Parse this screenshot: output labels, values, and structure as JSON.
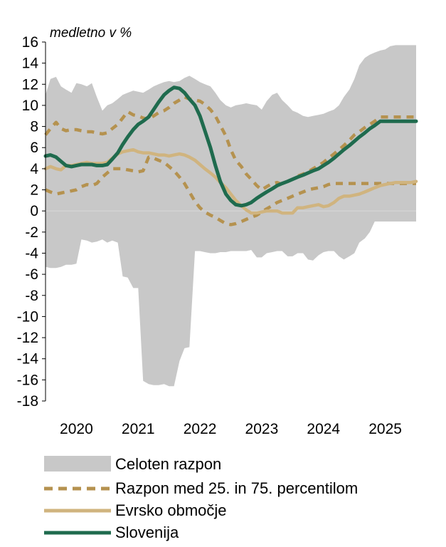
{
  "chart_data": {
    "type": "area",
    "ylabel": "medletno v %",
    "ylim": [
      -18,
      16
    ],
    "y_ticks": [
      "16",
      "14",
      "12",
      "10",
      "8",
      "6",
      "4",
      "2",
      "0",
      "-2",
      "-4",
      "-6",
      "-8",
      "-10",
      "-12",
      "-14",
      "-16",
      "-18"
    ],
    "x_labels": [
      "2020",
      "2021",
      "2022",
      "2023",
      "2024",
      "2025"
    ],
    "legend_position": "bottom",
    "colors": {
      "range": "#c8c8c8",
      "percentile": "#b5924f",
      "euro": "#d0b47f",
      "slovenia": "#1f6b4e"
    },
    "x_start": 2019.5,
    "x_end": 2025.5,
    "range_band": {
      "name": "Celoten razpon",
      "x": [
        2019.5,
        2019.58,
        2019.67,
        2019.75,
        2019.83,
        2019.92,
        2020.0,
        2020.08,
        2020.17,
        2020.25,
        2020.33,
        2020.42,
        2020.5,
        2020.58,
        2020.67,
        2020.75,
        2020.83,
        2020.92,
        2021.0,
        2021.08,
        2021.17,
        2021.25,
        2021.33,
        2021.42,
        2021.5,
        2021.58,
        2021.67,
        2021.75,
        2021.83,
        2021.92,
        2022.0,
        2022.08,
        2022.17,
        2022.25,
        2022.33,
        2022.42,
        2022.5,
        2022.58,
        2022.67,
        2022.75,
        2022.83,
        2022.92,
        2023.0,
        2023.08,
        2023.17,
        2023.25,
        2023.33,
        2023.42,
        2023.5,
        2023.58,
        2023.67,
        2023.75,
        2023.83,
        2023.92,
        2024.0,
        2024.08,
        2024.17,
        2024.25,
        2024.33,
        2024.42,
        2024.5,
        2024.58,
        2024.67,
        2024.75,
        2024.83,
        2024.92,
        2025.0,
        2025.08,
        2025.17,
        2025.25,
        2025.33,
        2025.42,
        2025.5
      ],
      "high": [
        11.0,
        12.5,
        12.7,
        11.8,
        11.5,
        11.2,
        12.1,
        12.0,
        11.8,
        12.1,
        10.8,
        9.5,
        10.0,
        10.2,
        10.6,
        11.0,
        11.2,
        11.4,
        11.3,
        11.2,
        11.5,
        11.8,
        12.0,
        12.2,
        12.3,
        12.2,
        12.3,
        12.6,
        12.8,
        12.5,
        12.2,
        12.0,
        11.8,
        11.2,
        10.5,
        10.0,
        9.8,
        10.0,
        10.1,
        10.2,
        10.1,
        10.0,
        9.6,
        10.4,
        11.0,
        11.2,
        10.5,
        10.0,
        9.5,
        9.3,
        9.0,
        8.9,
        9.0,
        9.1,
        9.2,
        9.4,
        9.6,
        10.0,
        10.8,
        11.5,
        12.5,
        13.8,
        14.5,
        14.8,
        15.0,
        15.2,
        15.3,
        15.6,
        15.7,
        15.7,
        15.7,
        15.7,
        15.7
      ],
      "low": [
        -5.3,
        -5.4,
        -5.4,
        -5.3,
        -5.1,
        -5.1,
        -5.0,
        -2.7,
        -2.8,
        -3.0,
        -2.9,
        -2.7,
        -3.0,
        -2.8,
        -3.0,
        -6.2,
        -6.3,
        -7.3,
        -7.3,
        -16.1,
        -16.4,
        -16.5,
        -16.5,
        -16.4,
        -16.6,
        -16.6,
        -14.2,
        -13.0,
        -12.9,
        -3.8,
        -3.8,
        -3.9,
        -4.0,
        -4.0,
        -3.9,
        -3.9,
        -3.8,
        -3.8,
        -3.8,
        -3.8,
        -3.7,
        -4.4,
        -4.4,
        -4.0,
        -3.9,
        -3.8,
        -3.8,
        -4.3,
        -4.3,
        -4.0,
        -4.0,
        -4.6,
        -4.7,
        -4.2,
        -3.9,
        -3.8,
        -3.8,
        -4.3,
        -4.6,
        -4.3,
        -4.0,
        -3.0,
        -2.6,
        -2.0,
        -1.0,
        -1.0,
        -1.0,
        -1.0,
        -1.0,
        -1.0,
        -1.0,
        -1.0,
        -1.0
      ]
    },
    "series": [
      {
        "name": "Razpon med 25. in 75. percentilom",
        "style": "dashed",
        "x": [
          2019.5,
          2019.58,
          2019.67,
          2019.75,
          2019.83,
          2019.92,
          2020.0,
          2020.08,
          2020.17,
          2020.25,
          2020.33,
          2020.42,
          2020.5,
          2020.58,
          2020.67,
          2020.75,
          2020.83,
          2020.92,
          2021.0,
          2021.08,
          2021.17,
          2021.25,
          2021.33,
          2021.42,
          2021.5,
          2021.58,
          2021.67,
          2021.75,
          2021.83,
          2021.92,
          2022.0,
          2022.08,
          2022.17,
          2022.25,
          2022.33,
          2022.42,
          2022.5,
          2022.58,
          2022.67,
          2022.75,
          2022.83,
          2022.92,
          2023.0,
          2023.08,
          2023.17,
          2023.25,
          2023.33,
          2023.42,
          2023.5,
          2023.58,
          2023.67,
          2023.75,
          2023.83,
          2023.92,
          2024.0,
          2024.08,
          2024.17,
          2024.25,
          2024.33,
          2024.42,
          2024.5,
          2024.58,
          2024.67,
          2024.75,
          2024.83,
          2024.92,
          2025.0,
          2025.08,
          2025.17,
          2025.25,
          2025.33,
          2025.42,
          2025.5
        ],
        "values": [
          7.2,
          7.8,
          8.4,
          7.8,
          7.6,
          7.7,
          7.7,
          7.6,
          7.5,
          7.5,
          7.4,
          7.3,
          7.4,
          7.8,
          8.2,
          8.8,
          9.4,
          9.1,
          9.0,
          8.8,
          8.7,
          9.0,
          9.3,
          9.5,
          9.8,
          10.2,
          10.5,
          10.8,
          10.6,
          10.5,
          10.4,
          10.1,
          9.6,
          9.0,
          8.1,
          7.1,
          5.8,
          4.8,
          4.2,
          3.5,
          3.0,
          2.4,
          2.0,
          2.3,
          2.6,
          2.7,
          2.5,
          2.8,
          3.0,
          3.3,
          3.5,
          3.7,
          4.0,
          4.3,
          4.6,
          5.0,
          5.4,
          5.8,
          6.2,
          6.7,
          7.2,
          7.5,
          7.9,
          8.2,
          8.5,
          8.9,
          8.9,
          8.9,
          8.9,
          8.9,
          8.9,
          8.9,
          8.9
        ]
      },
      {
        "name": "Razpon med 25. in 75. percentilom",
        "style": "dashed",
        "show_in_legend": false,
        "x": [
          2019.5,
          2019.58,
          2019.67,
          2019.75,
          2019.83,
          2019.92,
          2020.0,
          2020.08,
          2020.17,
          2020.25,
          2020.33,
          2020.42,
          2020.5,
          2020.58,
          2020.67,
          2020.75,
          2020.83,
          2020.92,
          2021.0,
          2021.08,
          2021.17,
          2021.25,
          2021.33,
          2021.42,
          2021.5,
          2021.58,
          2021.67,
          2021.75,
          2021.83,
          2021.92,
          2022.0,
          2022.08,
          2022.17,
          2022.25,
          2022.33,
          2022.42,
          2022.5,
          2022.58,
          2022.67,
          2022.75,
          2022.83,
          2022.92,
          2023.0,
          2023.08,
          2023.17,
          2023.25,
          2023.33,
          2023.42,
          2023.5,
          2023.58,
          2023.67,
          2023.75,
          2023.83,
          2023.92,
          2024.0,
          2024.08,
          2024.17,
          2024.25,
          2024.33,
          2024.42,
          2024.5,
          2024.58,
          2024.67,
          2024.75,
          2024.83,
          2024.92,
          2025.0,
          2025.08,
          2025.17,
          2025.25,
          2025.33,
          2025.42,
          2025.5
        ],
        "values": [
          2.0,
          1.8,
          1.6,
          1.7,
          1.8,
          1.9,
          2.0,
          2.3,
          2.5,
          2.4,
          2.6,
          3.2,
          3.6,
          4.0,
          4.0,
          4.0,
          3.9,
          3.8,
          3.7,
          3.8,
          5.1,
          5.0,
          4.8,
          4.6,
          4.2,
          3.8,
          3.2,
          2.6,
          1.8,
          0.9,
          0.3,
          -0.1,
          -0.4,
          -0.6,
          -0.9,
          -1.2,
          -1.3,
          -1.2,
          -1.0,
          -0.8,
          -0.6,
          -0.4,
          -0.1,
          0.2,
          0.5,
          0.8,
          1.0,
          1.2,
          1.4,
          1.6,
          1.8,
          2.0,
          2.1,
          2.2,
          2.3,
          2.5,
          2.6,
          2.6,
          2.6,
          2.6,
          2.6,
          2.6,
          2.6,
          2.6,
          2.6,
          2.6,
          2.6,
          2.6,
          2.6,
          2.6,
          2.6,
          2.6,
          2.6
        ]
      },
      {
        "name": "Evrsko območje",
        "style": "solid",
        "x": [
          2019.5,
          2019.58,
          2019.67,
          2019.75,
          2019.83,
          2019.92,
          2020.0,
          2020.08,
          2020.17,
          2020.25,
          2020.33,
          2020.42,
          2020.5,
          2020.58,
          2020.67,
          2020.75,
          2020.83,
          2020.92,
          2021.0,
          2021.08,
          2021.17,
          2021.25,
          2021.33,
          2021.42,
          2021.5,
          2021.58,
          2021.67,
          2021.75,
          2021.83,
          2021.92,
          2022.0,
          2022.08,
          2022.17,
          2022.25,
          2022.33,
          2022.42,
          2022.5,
          2022.58,
          2022.67,
          2022.75,
          2022.83,
          2022.92,
          2023.0,
          2023.08,
          2023.17,
          2023.25,
          2023.33,
          2023.42,
          2023.5,
          2023.58,
          2023.67,
          2023.75,
          2023.83,
          2023.92,
          2024.0,
          2024.08,
          2024.17,
          2024.25,
          2024.33,
          2024.42,
          2024.5,
          2024.58,
          2024.67,
          2024.75,
          2024.83,
          2024.92,
          2025.0,
          2025.08,
          2025.17,
          2025.25,
          2025.33,
          2025.42,
          2025.5
        ],
        "values": [
          4.0,
          4.2,
          4.0,
          3.9,
          4.3,
          4.3,
          4.4,
          4.5,
          4.6,
          4.5,
          4.5,
          4.5,
          4.6,
          5.0,
          5.4,
          5.6,
          5.7,
          5.8,
          5.6,
          5.5,
          5.5,
          5.4,
          5.3,
          5.3,
          5.2,
          5.3,
          5.4,
          5.3,
          5.1,
          4.8,
          4.4,
          4.0,
          3.6,
          3.2,
          2.7,
          2.2,
          1.6,
          1.0,
          0.5,
          0.1,
          -0.2,
          -0.2,
          -0.1,
          0.0,
          0.0,
          0.0,
          -0.2,
          -0.2,
          -0.2,
          0.3,
          0.3,
          0.4,
          0.5,
          0.6,
          0.4,
          0.5,
          0.8,
          1.2,
          1.4,
          1.4,
          1.5,
          1.6,
          1.8,
          2.0,
          2.2,
          2.4,
          2.5,
          2.6,
          2.7,
          2.7,
          2.7,
          2.7,
          2.8
        ]
      },
      {
        "name": "Slovenija",
        "style": "solid",
        "x": [
          2019.5,
          2019.58,
          2019.67,
          2019.75,
          2019.83,
          2019.92,
          2020.0,
          2020.08,
          2020.17,
          2020.25,
          2020.33,
          2020.42,
          2020.5,
          2020.58,
          2020.67,
          2020.75,
          2020.83,
          2020.92,
          2021.0,
          2021.08,
          2021.17,
          2021.25,
          2021.33,
          2021.42,
          2021.5,
          2021.58,
          2021.67,
          2021.75,
          2021.83,
          2021.92,
          2022.0,
          2022.08,
          2022.17,
          2022.25,
          2022.33,
          2022.42,
          2022.5,
          2022.58,
          2022.67,
          2022.75,
          2022.83,
          2022.92,
          2023.0,
          2023.08,
          2023.17,
          2023.25,
          2023.33,
          2023.42,
          2023.5,
          2023.58,
          2023.67,
          2023.75,
          2023.83,
          2023.92,
          2024.0,
          2024.08,
          2024.17,
          2024.25,
          2024.33,
          2024.42,
          2024.5,
          2024.58,
          2024.67,
          2024.75,
          2024.83,
          2024.92,
          2025.0,
          2025.08,
          2025.17,
          2025.25,
          2025.33,
          2025.42,
          2025.5
        ],
        "values": [
          5.2,
          5.3,
          5.1,
          4.7,
          4.3,
          4.2,
          4.3,
          4.4,
          4.4,
          4.4,
          4.3,
          4.3,
          4.4,
          4.9,
          5.5,
          6.3,
          7.0,
          7.7,
          8.2,
          8.5,
          8.9,
          9.6,
          10.3,
          11.0,
          11.4,
          11.7,
          11.6,
          11.2,
          10.6,
          10.0,
          9.0,
          7.6,
          6.0,
          4.3,
          2.8,
          1.6,
          1.0,
          0.6,
          0.5,
          0.6,
          0.8,
          1.2,
          1.5,
          1.8,
          2.1,
          2.4,
          2.6,
          2.8,
          3.0,
          3.2,
          3.4,
          3.6,
          3.8,
          4.0,
          4.3,
          4.6,
          5.0,
          5.4,
          5.8,
          6.2,
          6.6,
          7.0,
          7.4,
          7.8,
          8.1,
          8.5,
          8.5,
          8.5,
          8.5,
          8.5,
          8.5,
          8.5,
          8.5
        ]
      }
    ]
  }
}
